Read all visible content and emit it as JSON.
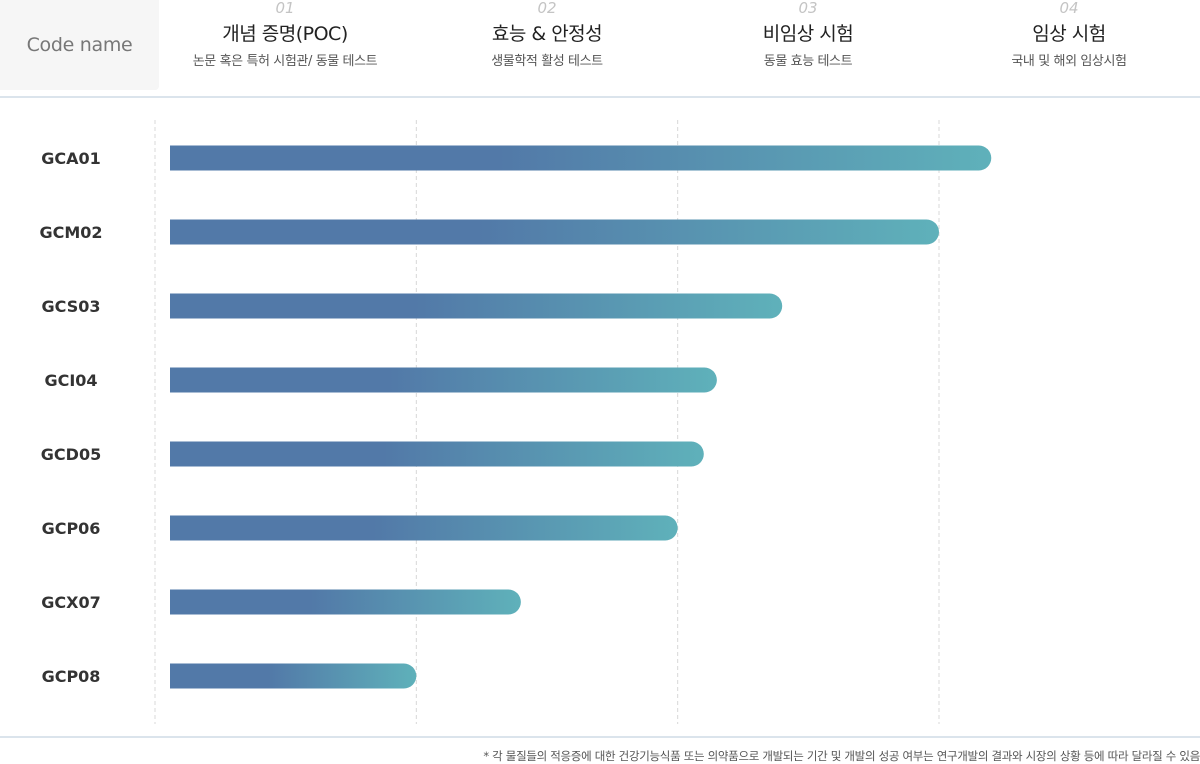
{
  "header": {
    "code_label": "Code name",
    "stages": [
      {
        "num": "01",
        "title": "개념 증명(POC)",
        "sub": "논문 혹은 특허 시험관/ 동물 테스트"
      },
      {
        "num": "02",
        "title": "효능 & 안정성",
        "sub": "생물학적 활성 테스트"
      },
      {
        "num": "03",
        "title": "비임상 시험",
        "sub": "동물 효능 테스트"
      },
      {
        "num": "04",
        "title": "임상 시험",
        "sub": "국내 및 해외 임상시험"
      }
    ]
  },
  "chart_data": {
    "type": "bar",
    "orientation": "horizontal",
    "categories": [
      "GCA01",
      "GCM02",
      "GCS03",
      "GCI04",
      "GCD05",
      "GCP06",
      "GCX07",
      "GCP08"
    ],
    "values": [
      3.2,
      3.0,
      2.4,
      2.15,
      2.1,
      2.0,
      1.4,
      1.0
    ],
    "xlim": [
      0,
      4
    ],
    "grid": true,
    "colors": {
      "start": "#5279a8",
      "end": "#5fb1ba",
      "grid": "#d8d8d8"
    }
  },
  "footnote": "* 각 물질들의 적응증에 대한 건강기능식품 또는 의약품으로 개발되는 기간 및 개발의 성공 여부는 연구개발의 결과와 시장의 상황 등에 따라 달라질 수 있음"
}
